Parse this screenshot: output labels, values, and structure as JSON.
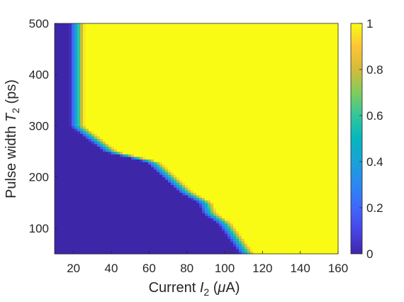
{
  "chart_data": {
    "type": "heatmap",
    "title": "",
    "xlabel": {
      "prefix": "Current  ",
      "symbol": "I",
      "subscript": "2",
      "suffix": " (",
      "mu": "μ",
      "unit": "A)"
    },
    "ylabel": {
      "prefix": "Pulse width  ",
      "symbol": "T",
      "subscript": "2",
      "suffix": " (ps)"
    },
    "xlim": [
      10,
      160
    ],
    "ylim": [
      50,
      500
    ],
    "x_ticks": [
      20,
      40,
      60,
      80,
      100,
      120,
      140,
      160
    ],
    "y_ticks": [
      100,
      200,
      300,
      400,
      500
    ],
    "colorbar": {
      "range": [
        0,
        1
      ],
      "ticks": [
        0,
        0.2,
        0.4,
        0.6,
        0.8,
        1
      ],
      "colormap": "parula"
    },
    "boundary": {
      "description": "threshold current for value 1 (above/right of boundary)",
      "pulse_width_ps": [
        50,
        80,
        90,
        110,
        130,
        150,
        170,
        190,
        210,
        230,
        250,
        300,
        500
      ],
      "current_uA": [
        112,
        106,
        104,
        100,
        92,
        90,
        80,
        74,
        68,
        62,
        40,
        22,
        22
      ]
    },
    "transition_width_uA": 8
  },
  "colors": {
    "low": "#3e26a8",
    "high": "#f9fb15"
  }
}
